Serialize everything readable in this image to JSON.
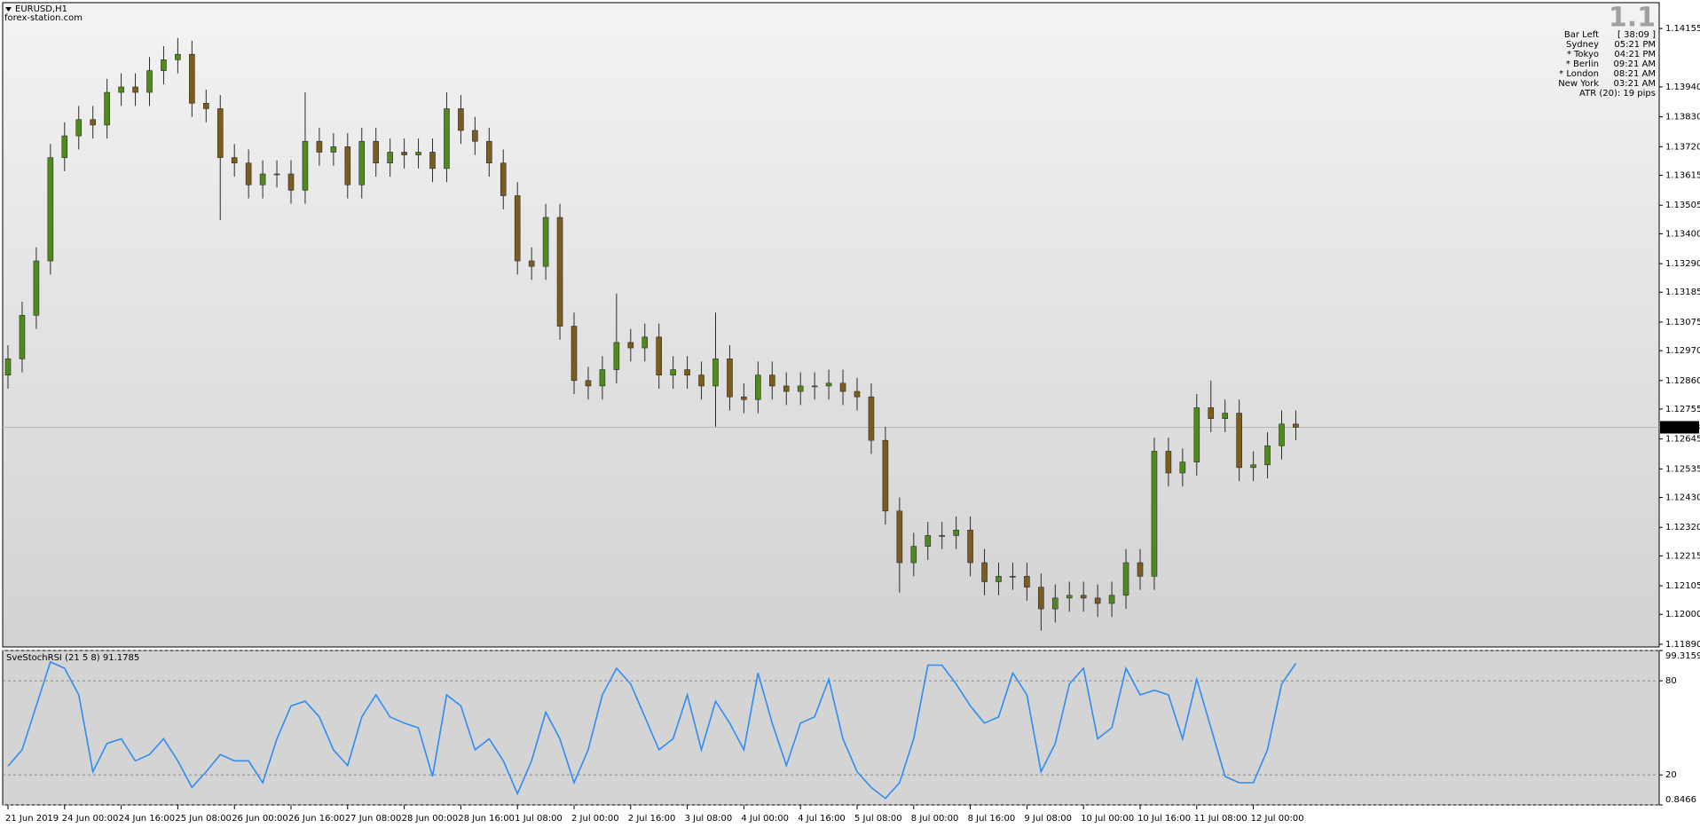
{
  "chart_data": [
    {
      "type": "candlestick",
      "title": "EURUSD,H1",
      "subtitle": "forex-station.com",
      "up_color": "#4f8a1f",
      "down_color": "#7a5c1e",
      "wick_color": "#2b2b2b",
      "categories": [
        "21 Jun 2019",
        null,
        null,
        null,
        "24 Jun 00:00",
        null,
        null,
        null,
        "24 Jun 16:00",
        null,
        null,
        null,
        "25 Jun 08:00",
        null,
        null,
        null,
        "26 Jun 00:00",
        null,
        null,
        null,
        "26 Jun 16:00",
        null,
        null,
        null,
        "27 Jun 08:00",
        null,
        null,
        null,
        "28 Jun 00:00",
        null,
        null,
        null,
        "28 Jun 16:00",
        null,
        null,
        null,
        "1 Jul 08:00",
        null,
        null,
        null,
        "2 Jul 00:00",
        null,
        null,
        null,
        "2 Jul 16:00",
        null,
        null,
        null,
        "3 Jul 08:00",
        null,
        null,
        null,
        "4 Jul 00:00",
        null,
        null,
        null,
        "4 Jul 16:00",
        null,
        null,
        null,
        "5 Jul 08:00",
        null,
        null,
        null,
        "8 Jul 00:00",
        null,
        null,
        null,
        "8 Jul 16:00",
        null,
        null,
        null,
        "9 Jul 08:00",
        null,
        null,
        null,
        "10 Jul 00:00",
        null,
        null,
        null,
        "10 Jul 16:00",
        null,
        null,
        null,
        "11 Jul 08:00",
        null,
        null,
        null,
        "12 Jul 00:00",
        null,
        null,
        null
      ],
      "open": [
        1.1288,
        1.1294,
        1.131,
        1.133,
        1.1368,
        1.1376,
        1.1382,
        1.138,
        1.1392,
        1.1394,
        1.1392,
        1.14,
        1.1404,
        1.1406,
        1.1388,
        1.1386,
        1.1368,
        1.1366,
        1.1358,
        1.1362,
        1.1362,
        1.1356,
        1.1374,
        1.137,
        1.1372,
        1.1358,
        1.1374,
        1.1366,
        1.137,
        1.1369,
        1.137,
        1.1364,
        1.1386,
        1.1378,
        1.1374,
        1.1366,
        1.1354,
        1.133,
        1.1328,
        1.1346,
        1.1306,
        1.1286,
        1.1284,
        1.129,
        1.13,
        1.1298,
        1.1302,
        1.1288,
        1.129,
        1.1288,
        1.1284,
        1.1294,
        1.128,
        1.1279,
        1.1288,
        1.1284,
        1.1282,
        1.1284,
        1.1284,
        1.1285,
        1.1282,
        1.128,
        1.1264,
        1.1238,
        1.1219,
        1.1225,
        1.1229,
        1.1229,
        1.1231,
        1.1219,
        1.1212,
        1.1214,
        1.1214,
        1.121,
        1.1202,
        1.1206,
        1.1207,
        1.1206,
        1.1204,
        1.1207,
        1.1219,
        1.1214,
        1.126,
        1.1252,
        1.1256,
        1.1276,
        1.1272,
        1.1274,
        1.1254,
        1.1255,
        1.1262,
        1.127
      ],
      "high": [
        1.1299,
        1.1315,
        1.1335,
        1.1373,
        1.1381,
        1.1387,
        1.1387,
        1.1397,
        1.1399,
        1.1399,
        1.1405,
        1.1409,
        1.1412,
        1.1411,
        1.1393,
        1.1391,
        1.1373,
        1.1371,
        1.1367,
        1.1367,
        1.1367,
        1.1392,
        1.1379,
        1.1377,
        1.1377,
        1.1379,
        1.1379,
        1.1375,
        1.1375,
        1.1375,
        1.1375,
        1.1392,
        1.1391,
        1.1383,
        1.1379,
        1.1371,
        1.1359,
        1.1335,
        1.1351,
        1.1351,
        1.1311,
        1.1291,
        1.1295,
        1.1318,
        1.1305,
        1.1307,
        1.1307,
        1.1295,
        1.1295,
        1.1293,
        1.1311,
        1.1299,
        1.1285,
        1.1293,
        1.1293,
        1.1289,
        1.1289,
        1.1289,
        1.129,
        1.129,
        1.1287,
        1.1285,
        1.1269,
        1.1243,
        1.123,
        1.1234,
        1.1234,
        1.1236,
        1.1236,
        1.1224,
        1.1219,
        1.1219,
        1.1219,
        1.1215,
        1.1211,
        1.1212,
        1.1212,
        1.1211,
        1.1212,
        1.1224,
        1.1224,
        1.1265,
        1.1265,
        1.1261,
        1.1281,
        1.1286,
        1.1279,
        1.1279,
        1.126,
        1.1267,
        1.1275,
        1.1275
      ],
      "low": [
        1.1283,
        1.1289,
        1.1305,
        1.1325,
        1.1363,
        1.1371,
        1.1375,
        1.1375,
        1.1387,
        1.1387,
        1.1387,
        1.1395,
        1.1399,
        1.1383,
        1.1381,
        1.1345,
        1.1361,
        1.1353,
        1.1353,
        1.1357,
        1.1351,
        1.1351,
        1.1365,
        1.1365,
        1.1353,
        1.1353,
        1.1361,
        1.1361,
        1.1364,
        1.1364,
        1.1359,
        1.1359,
        1.1373,
        1.1369,
        1.1361,
        1.1349,
        1.1325,
        1.1323,
        1.1323,
        1.1301,
        1.1281,
        1.1279,
        1.1279,
        1.1285,
        1.1293,
        1.1293,
        1.1283,
        1.1283,
        1.1283,
        1.1279,
        1.1269,
        1.1275,
        1.1274,
        1.1274,
        1.1279,
        1.1277,
        1.1277,
        1.1279,
        1.1279,
        1.1277,
        1.1275,
        1.1259,
        1.1233,
        1.1208,
        1.1214,
        1.122,
        1.1224,
        1.1224,
        1.1214,
        1.1207,
        1.1207,
        1.1209,
        1.1205,
        1.1194,
        1.1197,
        1.1201,
        1.1201,
        1.1199,
        1.1199,
        1.1202,
        1.1209,
        1.1209,
        1.1247,
        1.1247,
        1.1251,
        1.1267,
        1.1267,
        1.1249,
        1.1249,
        1.125,
        1.1257,
        1.1264
      ],
      "close": [
        1.1294,
        1.131,
        1.133,
        1.1368,
        1.1376,
        1.1382,
        1.138,
        1.1392,
        1.1394,
        1.1392,
        1.14,
        1.1404,
        1.1406,
        1.1388,
        1.1386,
        1.1368,
        1.1366,
        1.1358,
        1.1362,
        1.1362,
        1.1356,
        1.1374,
        1.137,
        1.1372,
        1.1358,
        1.1374,
        1.1366,
        1.137,
        1.1369,
        1.137,
        1.1364,
        1.1386,
        1.1378,
        1.1374,
        1.1366,
        1.1354,
        1.133,
        1.1328,
        1.1346,
        1.1306,
        1.1286,
        1.1284,
        1.129,
        1.13,
        1.1298,
        1.1302,
        1.1288,
        1.129,
        1.1288,
        1.1284,
        1.1294,
        1.128,
        1.1279,
        1.1288,
        1.1284,
        1.1282,
        1.1284,
        1.1284,
        1.1285,
        1.1282,
        1.128,
        1.1264,
        1.1238,
        1.1219,
        1.1225,
        1.1229,
        1.1229,
        1.1231,
        1.1219,
        1.1212,
        1.1214,
        1.1214,
        1.121,
        1.1202,
        1.1206,
        1.1207,
        1.1206,
        1.1204,
        1.1207,
        1.1219,
        1.1214,
        1.126,
        1.1252,
        1.1256,
        1.1276,
        1.1272,
        1.1274,
        1.1254,
        1.1255,
        1.1262,
        1.127,
        1.12688
      ],
      "current_price": 1.12688,
      "ylim": [
        1.1188,
        1.1425
      ],
      "yticks": [
        {
          "value": 1.14155,
          "label": "1.14155"
        },
        {
          "value": 1.1394,
          "label": "1.13940"
        },
        {
          "value": 1.1383,
          "label": "1.13830"
        },
        {
          "value": 1.1372,
          "label": "1.13720"
        },
        {
          "value": 1.13615,
          "label": "1.13615"
        },
        {
          "value": 1.13505,
          "label": "1.13505"
        },
        {
          "value": 1.134,
          "label": "1.13400"
        },
        {
          "value": 1.1329,
          "label": "1.13290"
        },
        {
          "value": 1.13185,
          "label": "1.13185"
        },
        {
          "value": 1.13075,
          "label": "1.13075"
        },
        {
          "value": 1.1297,
          "label": "1.12970"
        },
        {
          "value": 1.1286,
          "label": "1.12860"
        },
        {
          "value": 1.12755,
          "label": "1.12755"
        },
        {
          "value": 1.12645,
          "label": "1.12645"
        },
        {
          "value": 1.12535,
          "label": "1.12535"
        },
        {
          "value": 1.1243,
          "label": "1.12430"
        },
        {
          "value": 1.1232,
          "label": "1.12320"
        },
        {
          "value": 1.12215,
          "label": "1.12215"
        },
        {
          "value": 1.12105,
          "label": "1.12105"
        },
        {
          "value": 1.12,
          "label": "1.12000"
        },
        {
          "value": 1.1189,
          "label": "1.11890"
        }
      ],
      "info_panel": {
        "title": "1.1",
        "rows": [
          {
            "label": "Bar Left",
            "value": "[ 38:09 ]",
            "color": "#a8a8a8"
          },
          {
            "label": "Sydney",
            "value": "05:21 PM",
            "color": "#a8a8a8"
          },
          {
            "label": "* Tokyo",
            "value": "04:21 PM",
            "color": "#ff0000"
          },
          {
            "label": "* Berlin",
            "value": "09:21 AM",
            "color": "#ff0000"
          },
          {
            "label": "* London",
            "value": "08:21 AM",
            "color": "#ff0000"
          },
          {
            "label": "New York",
            "value": "03:21 AM",
            "color": "#a8a8a8"
          }
        ],
        "footer": "ATR (20): 19 pips"
      }
    },
    {
      "type": "line",
      "title": "SveStochRSI (21 5 8) 91.1785",
      "color": "#2e8cf2",
      "values": [
        25.6,
        36,
        64,
        92,
        88,
        71,
        22,
        40,
        43,
        29,
        33,
        43,
        29,
        12,
        22,
        33,
        29,
        29,
        15,
        43,
        64,
        67,
        57,
        36,
        26,
        57,
        71,
        57,
        53,
        50,
        19,
        71,
        64,
        36,
        43,
        29,
        8,
        29,
        60,
        43,
        15,
        36,
        71,
        88,
        78,
        57,
        36,
        43,
        71,
        36,
        67,
        53,
        36,
        85,
        53,
        26,
        53,
        57,
        81,
        43,
        22,
        12,
        5,
        15,
        43,
        90,
        90,
        78,
        64,
        53,
        57,
        85,
        71,
        22,
        40,
        78,
        88,
        43,
        50,
        88,
        71,
        74,
        71,
        43,
        81,
        50,
        19,
        15,
        15,
        36,
        78,
        91.1785
      ],
      "ylim": [
        0.8466,
        99.3159
      ],
      "yticks": [
        0.8466,
        20,
        80,
        99.3159
      ],
      "grid": true
    }
  ]
}
